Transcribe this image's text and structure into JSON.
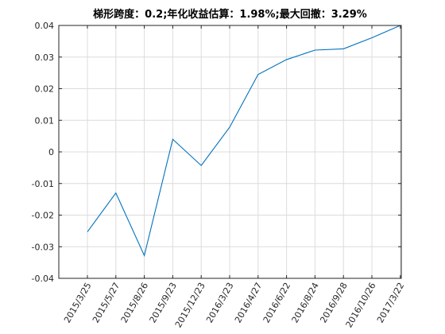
{
  "chart_data": {
    "type": "line",
    "title": "梯形跨度：0.2;年化收益估算：1.98%;最大回撤：3.29%",
    "xlabel": "",
    "ylabel": "",
    "categories": [
      "2015/3/25",
      "2015/5/27",
      "2015/8/26",
      "2015/9/23",
      "2015/12/23",
      "2016/3/23",
      "2016/4/27",
      "2016/6/22",
      "2016/8/24",
      "2016/9/28",
      "2016/10/26",
      "2017/3/22"
    ],
    "series": [
      {
        "values": [
          -0.0253,
          -0.013,
          -0.0328,
          0.004,
          -0.0043,
          0.0078,
          0.0245,
          0.0292,
          0.0322,
          0.0326,
          0.0361,
          0.04
        ]
      }
    ],
    "ylim": [
      -0.04,
      0.04
    ],
    "yticks": [
      -0.04,
      -0.03,
      -0.02,
      -0.01,
      0,
      0.01,
      0.02,
      0.03,
      0.04
    ],
    "ytick_labels": [
      "-0.04",
      "-0.03",
      "-0.02",
      "-0.01",
      "0",
      "0.01",
      "0.02",
      "0.03",
      "0.04"
    ],
    "grid": true,
    "line_color": "#0072bd"
  }
}
